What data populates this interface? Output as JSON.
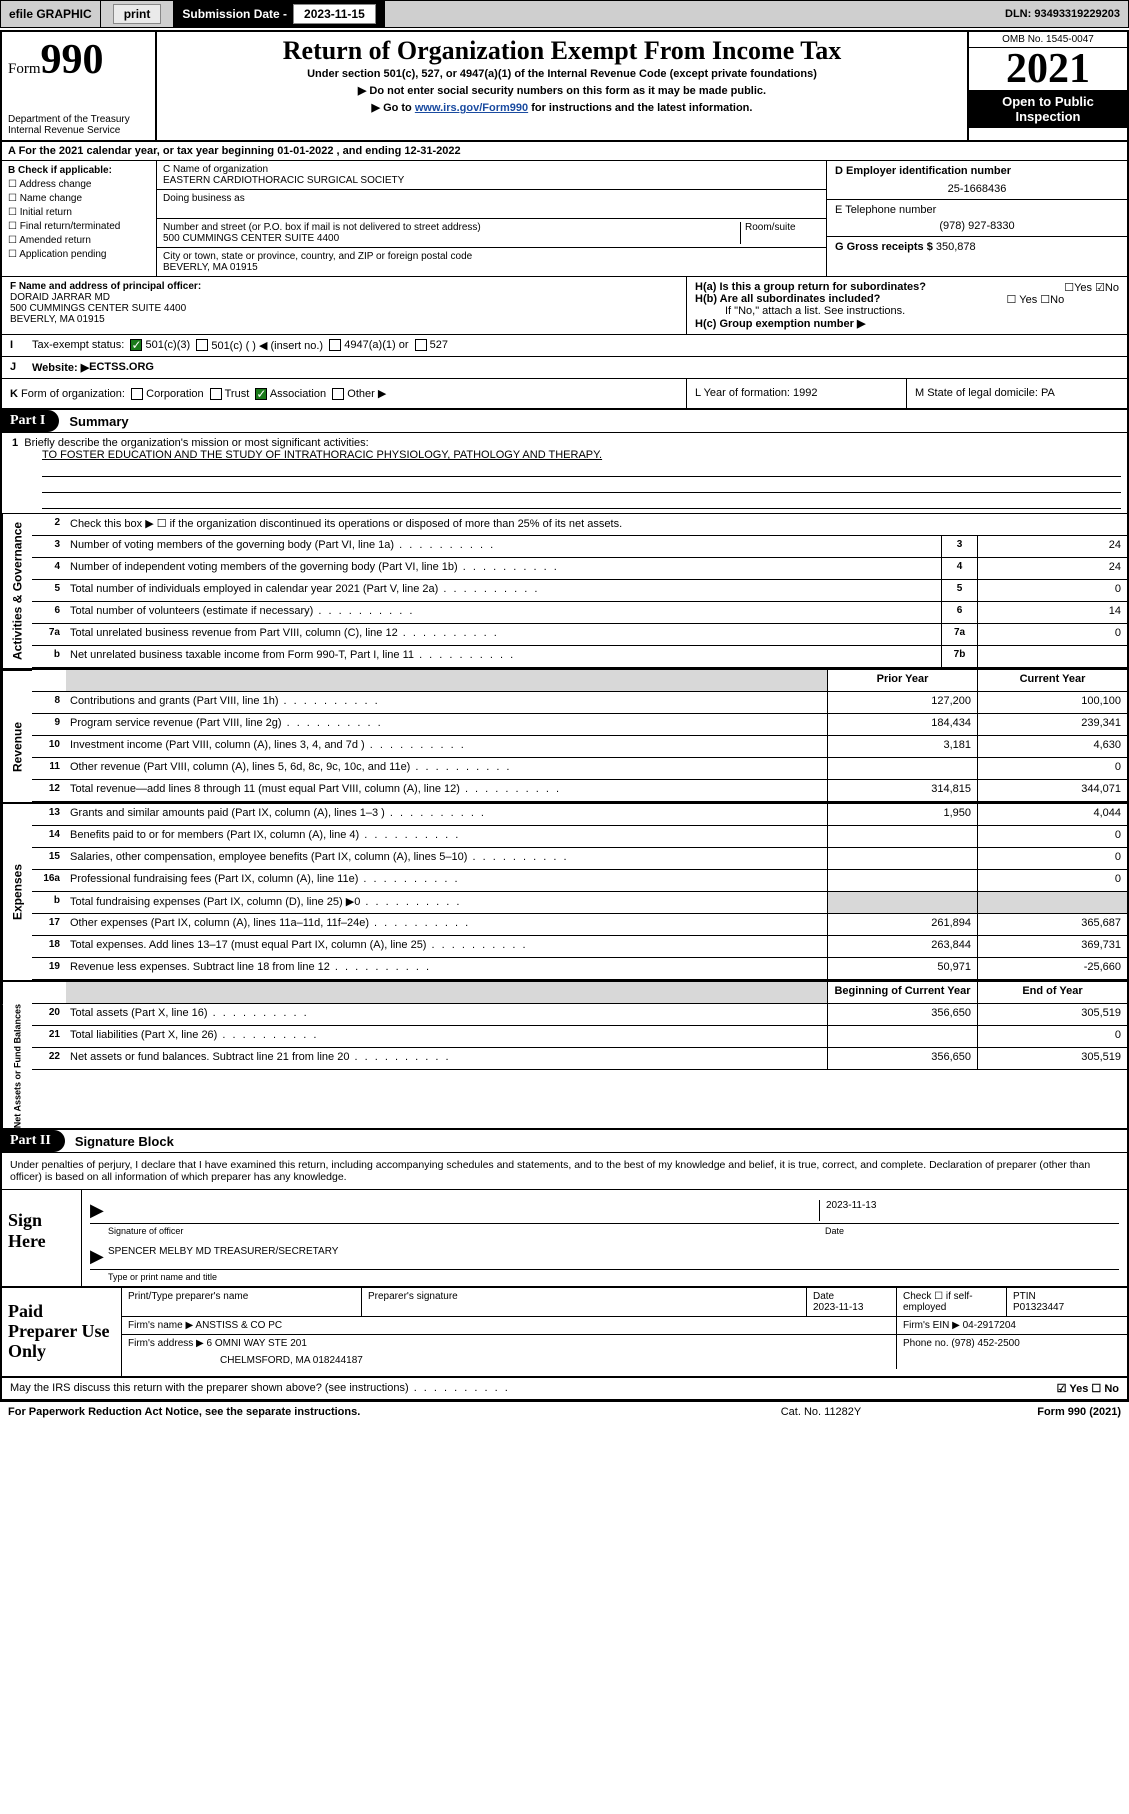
{
  "topbar": {
    "efile": "efile GRAPHIC",
    "print": "print",
    "subdate_label": "Submission Date - ",
    "subdate": "2023-11-15",
    "dln_label": "DLN: ",
    "dln": "93493319229203"
  },
  "header": {
    "form_prefix": "Form",
    "form_num": "990",
    "title": "Return of Organization Exempt From Income Tax",
    "subtitle": "Under section 501(c), 527, or 4947(a)(1) of the Internal Revenue Code (except private foundations)",
    "arrow1": "▶ Do not enter social security numbers on this form as it may be made public.",
    "arrow2_pre": "▶ Go to ",
    "arrow2_link": "www.irs.gov/Form990",
    "arrow2_post": " for instructions and the latest information.",
    "dept": "Department of the Treasury",
    "irs": "Internal Revenue Service",
    "omb": "OMB No. 1545-0047",
    "year": "2021",
    "open": "Open to Public Inspection"
  },
  "rowA": "A For the 2021 calendar year, or tax year beginning 01-01-2022   , and ending 12-31-2022",
  "boxB": {
    "label": "B Check if applicable:",
    "items": [
      "Address change",
      "Name change",
      "Initial return",
      "Final return/terminated",
      "Amended return",
      "Application pending"
    ]
  },
  "boxC": {
    "name_lbl": "C Name of organization",
    "name": "EASTERN CARDIOTHORACIC SURGICAL SOCIETY",
    "dba_lbl": "Doing business as",
    "street_lbl": "Number and street (or P.O. box if mail is not delivered to street address)",
    "room_lbl": "Room/suite",
    "street": "500 CUMMINGS CENTER SUITE 4400",
    "city_lbl": "City or town, state or province, country, and ZIP or foreign postal code",
    "city": "BEVERLY, MA  01915"
  },
  "boxD": {
    "lbl": "D Employer identification number",
    "val": "25-1668436"
  },
  "boxE": {
    "lbl": "E Telephone number",
    "val": "(978) 927-8330"
  },
  "boxG": {
    "lbl": "G Gross receipts $ ",
    "val": "350,878"
  },
  "boxF": {
    "lbl": "F Name and address of principal officer:",
    "name": "DORAID JARRAR MD",
    "addr1": "500 CUMMINGS CENTER SUITE 4400",
    "addr2": "BEVERLY, MA  01915"
  },
  "boxH": {
    "ha": "H(a)  Is this a group return for subordinates?",
    "ha_ans": "☐Yes ☑No",
    "hb": "H(b)  Are all subordinates included?",
    "hb_ans": "☐ Yes ☐No",
    "hb_note": "If \"No,\" attach a list. See instructions.",
    "hc": "H(c)  Group exemption number ▶"
  },
  "rowI": {
    "lbl": "I",
    "text": "Tax-exempt status:",
    "opt1": "501(c)(3)",
    "opt2": "501(c) (  ) ◀ (insert no.)",
    "opt3": "4947(a)(1) or",
    "opt4": "527"
  },
  "rowJ": {
    "lbl": "J",
    "text": "Website: ▶",
    "val": " ECTSS.ORG"
  },
  "rowK": {
    "lbl": "K",
    "text": "Form of organization:",
    "opts": [
      "Corporation",
      "Trust",
      "Association",
      "Other ▶"
    ],
    "checked": 2
  },
  "rowL": {
    "text": "L Year of formation: 1992"
  },
  "rowM": {
    "text": "M State of legal domicile: PA"
  },
  "partI": {
    "tag": "Part I",
    "title": "Summary"
  },
  "mission": {
    "line1_lbl": "1",
    "line1": "Briefly describe the organization's mission or most significant activities:",
    "text": "TO FOSTER EDUCATION AND THE STUDY OF INTRATHORACIC PHYSIOLOGY, PATHOLOGY AND THERAPY."
  },
  "governance_rows": [
    {
      "n": "2",
      "d": "Check this box ▶ ☐  if the organization discontinued its operations or disposed of more than 25% of its net assets.",
      "b": "",
      "v": ""
    },
    {
      "n": "3",
      "d": "Number of voting members of the governing body (Part VI, line 1a)",
      "b": "3",
      "v": "24"
    },
    {
      "n": "4",
      "d": "Number of independent voting members of the governing body (Part VI, line 1b)",
      "b": "4",
      "v": "24"
    },
    {
      "n": "5",
      "d": "Total number of individuals employed in calendar year 2021 (Part V, line 2a)",
      "b": "5",
      "v": "0"
    },
    {
      "n": "6",
      "d": "Total number of volunteers (estimate if necessary)",
      "b": "6",
      "v": "14"
    },
    {
      "n": "7a",
      "d": "Total unrelated business revenue from Part VIII, column (C), line 12",
      "b": "7a",
      "v": "0"
    },
    {
      "n": "b",
      "d": "Net unrelated business taxable income from Form 990-T, Part I, line 11",
      "b": "7b",
      "v": ""
    }
  ],
  "col_hdrs": {
    "prior": "Prior Year",
    "current": "Current Year"
  },
  "revenue_rows": [
    {
      "n": "8",
      "d": "Contributions and grants (Part VIII, line 1h)",
      "p": "127,200",
      "c": "100,100"
    },
    {
      "n": "9",
      "d": "Program service revenue (Part VIII, line 2g)",
      "p": "184,434",
      "c": "239,341"
    },
    {
      "n": "10",
      "d": "Investment income (Part VIII, column (A), lines 3, 4, and 7d )",
      "p": "3,181",
      "c": "4,630"
    },
    {
      "n": "11",
      "d": "Other revenue (Part VIII, column (A), lines 5, 6d, 8c, 9c, 10c, and 11e)",
      "p": "",
      "c": "0"
    },
    {
      "n": "12",
      "d": "Total revenue—add lines 8 through 11 (must equal Part VIII, column (A), line 12)",
      "p": "314,815",
      "c": "344,071"
    }
  ],
  "expense_rows": [
    {
      "n": "13",
      "d": "Grants and similar amounts paid (Part IX, column (A), lines 1–3 )",
      "p": "1,950",
      "c": "4,044"
    },
    {
      "n": "14",
      "d": "Benefits paid to or for members (Part IX, column (A), line 4)",
      "p": "",
      "c": "0"
    },
    {
      "n": "15",
      "d": "Salaries, other compensation, employee benefits (Part IX, column (A), lines 5–10)",
      "p": "",
      "c": "0"
    },
    {
      "n": "16a",
      "d": "Professional fundraising fees (Part IX, column (A), line 11e)",
      "p": "",
      "c": "0"
    },
    {
      "n": "b",
      "d": "Total fundraising expenses (Part IX, column (D), line 25) ▶0",
      "p": "shade",
      "c": "shade"
    },
    {
      "n": "17",
      "d": "Other expenses (Part IX, column (A), lines 11a–11d, 11f–24e)",
      "p": "261,894",
      "c": "365,687"
    },
    {
      "n": "18",
      "d": "Total expenses. Add lines 13–17 (must equal Part IX, column (A), line 25)",
      "p": "263,844",
      "c": "369,731"
    },
    {
      "n": "19",
      "d": "Revenue less expenses. Subtract line 18 from line 12",
      "p": "50,971",
      "c": "-25,660"
    }
  ],
  "balance_hdrs": {
    "begin": "Beginning of Current Year",
    "end": "End of Year"
  },
  "balance_rows": [
    {
      "n": "20",
      "d": "Total assets (Part X, line 16)",
      "p": "356,650",
      "c": "305,519"
    },
    {
      "n": "21",
      "d": "Total liabilities (Part X, line 26)",
      "p": "",
      "c": "0"
    },
    {
      "n": "22",
      "d": "Net assets or fund balances. Subtract line 21 from line 20",
      "p": "356,650",
      "c": "305,519"
    }
  ],
  "sidebars": {
    "gov": "Activities & Governance",
    "rev": "Revenue",
    "exp": "Expenses",
    "bal": "Net Assets or Fund Balances"
  },
  "partII": {
    "tag": "Part II",
    "title": "Signature Block"
  },
  "declaration": "Under penalties of perjury, I declare that I have examined this return, including accompanying schedules and statements, and to the best of my knowledge and belief, it is true, correct, and complete. Declaration of preparer (other than officer) is based on all information of which preparer has any knowledge.",
  "sign": {
    "title": "Sign Here",
    "sig_lbl": "Signature of officer",
    "date_lbl": "Date",
    "date": "2023-11-13",
    "name": "SPENCER MELBY MD  TREASURER/SECRETARY",
    "name_lbl": "Type or print name and title"
  },
  "paid": {
    "title": "Paid Preparer Use Only",
    "r1": {
      "c1": "Print/Type preparer's name",
      "c2": "Preparer's signature",
      "c3": "Date",
      "c3v": "2023-11-13",
      "c4": "Check ☐ if self-employed",
      "c5": "PTIN",
      "c5v": "P01323447"
    },
    "r2": {
      "lbl": "Firm's name    ▶",
      "val": "ANSTISS & CO PC",
      "ein_lbl": "Firm's EIN ▶",
      "ein": "04-2917204"
    },
    "r3": {
      "lbl": "Firm's address ▶",
      "val1": "6 OMNI WAY STE 201",
      "val2": "CHELMSFORD, MA  018244187",
      "tel_lbl": "Phone no.",
      "tel": "(978) 452-2500"
    }
  },
  "footer": {
    "discuss": "May the IRS discuss this return with the preparer shown above? (see instructions)",
    "yn": "☑ Yes  ☐ No"
  },
  "bottom": {
    "left": "For Paperwork Reduction Act Notice, see the separate instructions.",
    "mid": "Cat. No. 11282Y",
    "right": "Form 990 (2021)"
  }
}
